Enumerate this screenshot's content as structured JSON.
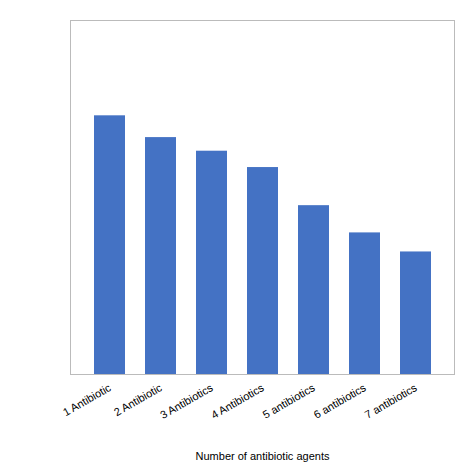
{
  "chart_data": {
    "type": "bar",
    "categories": [
      "1 Antibiotic",
      "2 Antibiotic",
      "3 Antibiotics",
      "4 Antibiotics",
      "5 antibiotics",
      "6 antibiotics",
      "7 antibiotics"
    ],
    "values": [
      95,
      87,
      82,
      76,
      62,
      52,
      45
    ],
    "color": "#4472C4",
    "xlabel": "Number of antibiotic agents",
    "ylim": [
      0,
      130
    ],
    "yticks": [],
    "grid": false,
    "tick_labels": "x"
  }
}
